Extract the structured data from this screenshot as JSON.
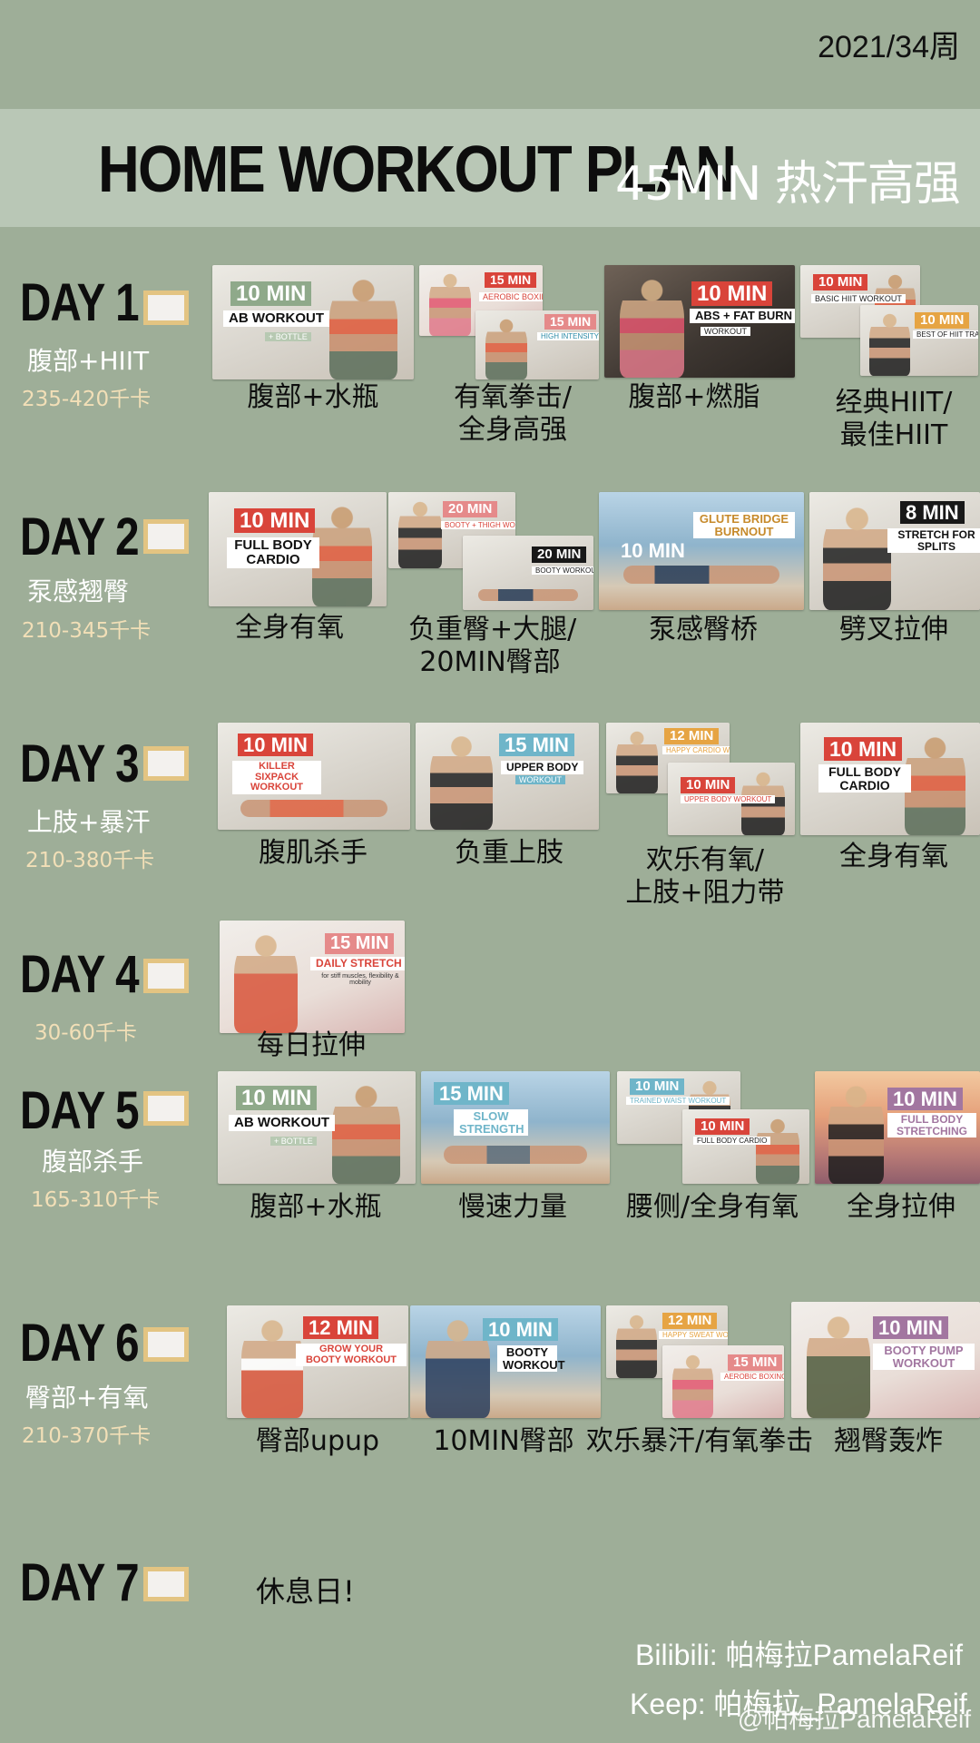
{
  "header": {
    "week": "2021/34周",
    "title": "HOME WORKOUT PLAN",
    "subtitle": "45MIN 热汗高强"
  },
  "days": [
    {
      "label": "DAY 1",
      "checked": false,
      "focus": "腹部+HIIT",
      "kcal": "235-420千卡",
      "videos": [
        {
          "badge": "10 MIN",
          "title": "AB WORKOUT",
          "extra": "+ BOTTLE",
          "caption": [
            "腹部+水瓶"
          ]
        },
        {
          "badge": "15 MIN",
          "title": "AEROBIC BOXING CARDIO",
          "badge2": "15 MIN",
          "title2": "HIGH INTENSITY FULL BODY",
          "caption": [
            "有氧拳击/",
            "全身高强"
          ]
        },
        {
          "badge": "10 MIN",
          "title": "ABS + FAT BURN",
          "extra": "WORKOUT",
          "caption": [
            "腹部+燃脂"
          ]
        },
        {
          "badge": "10 MIN",
          "title": "BASIC HIIT WORKOUT",
          "badge2": "10 MIN",
          "title2": "BEST OF HIIT TRAINING",
          "caption": [
            "经典HIIT/",
            "最佳HIIT"
          ]
        }
      ]
    },
    {
      "label": "DAY 2",
      "checked": false,
      "focus": "泵感翘臀",
      "kcal": "210-345千卡",
      "videos": [
        {
          "badge": "10 MIN",
          "title": "FULL BODY CARDIO",
          "caption": [
            "全身有氧"
          ]
        },
        {
          "badge": "20 MIN",
          "title": "BOOTY + THIGH WORKOUT",
          "badge2": "20 MIN",
          "title2": "BOOTY WORKOUT",
          "caption": [
            "负重臀+大腿/",
            "20MIN臀部"
          ]
        },
        {
          "badge": "10 MIN",
          "title": "GLUTE BRIDGE BURNOUT",
          "caption": [
            "泵感臀桥"
          ]
        },
        {
          "badge": "8 MIN",
          "title": "STRETCH FOR SPLITS",
          "caption": [
            "劈叉拉伸"
          ]
        }
      ]
    },
    {
      "label": "DAY 3",
      "checked": false,
      "focus": "上肢+暴汗",
      "kcal": "210-380千卡",
      "videos": [
        {
          "badge": "10 MIN",
          "title": "KILLER SIXPACK WORKOUT",
          "caption": [
            "腹肌杀手"
          ]
        },
        {
          "badge": "15 MIN",
          "title": "UPPER BODY",
          "extra": "WORKOUT",
          "caption": [
            "负重上肢"
          ]
        },
        {
          "badge": "12 MIN",
          "title": "HAPPY CARDIO WORKOUT",
          "badge2": "10 MIN",
          "title2": "UPPER BODY WORKOUT",
          "caption": [
            "欢乐有氧/",
            "上肢+阻力带"
          ]
        },
        {
          "badge": "10 MIN",
          "title": "FULL BODY CARDIO",
          "caption": [
            "全身有氧"
          ]
        }
      ]
    },
    {
      "label": "DAY 4",
      "checked": false,
      "focus": "",
      "kcal": "30-60千卡",
      "videos": [
        {
          "badge": "15 MIN",
          "title": "DAILY STRETCH",
          "extra": "for stiff muscles, flexibility & mobility",
          "caption": [
            "每日拉伸"
          ]
        }
      ]
    },
    {
      "label": "DAY 5",
      "checked": false,
      "focus": "腹部杀手",
      "kcal": "165-310千卡",
      "videos": [
        {
          "badge": "10 MIN",
          "title": "AB WORKOUT",
          "extra": "+ BOTTLE",
          "caption": [
            "腹部+水瓶"
          ]
        },
        {
          "badge": "15 MIN",
          "title": "SLOW STRENGTH",
          "caption": [
            "慢速力量"
          ]
        },
        {
          "badge": "10 MIN",
          "title": "TRAINED WAIST WORKOUT",
          "badge2": "10 MIN",
          "title2": "FULL BODY CARDIO",
          "caption": [
            "腰侧/全身有氧"
          ]
        },
        {
          "badge": "10 MIN",
          "title": "FULL BODY STRETCHING",
          "caption": [
            "全身拉伸"
          ]
        }
      ]
    },
    {
      "label": "DAY 6",
      "checked": false,
      "focus": "臀部+有氧",
      "kcal": "210-370千卡",
      "videos": [
        {
          "badge": "12 MIN",
          "title": "GROW YOUR BOOTY WORKOUT",
          "caption": [
            "臀部upup"
          ]
        },
        {
          "badge": "10 MIN",
          "title": "BOOTY WORKOUT",
          "caption": [
            "10MIN臀部"
          ]
        },
        {
          "badge": "12 MIN",
          "title": "HAPPY SWEAT WORKOUT",
          "badge2": "15 MIN",
          "title2": "AEROBIC BOXING CARDIO",
          "caption": [
            "欢乐暴汗/有氧拳击"
          ]
        },
        {
          "badge": "10 MIN",
          "title": "BOOTY PUMP WORKOUT",
          "caption": [
            "翘臀轰炸"
          ]
        }
      ]
    },
    {
      "label": "DAY 7",
      "checked": false,
      "focus": "",
      "kcal": "",
      "rest_text": "休息日!",
      "videos": []
    }
  ],
  "footer": {
    "bilibili": "Bilibili: 帕梅拉PamelaReif",
    "keep": "Keep: 帕梅拉_PamelaReif",
    "watermark": "@帕梅拉PamelaReif"
  },
  "colors": {
    "background": "#9eae98",
    "banner": "#b9c7b6",
    "checkbox_border": "#e3c482",
    "kcal_text": "#f2dfb7"
  }
}
